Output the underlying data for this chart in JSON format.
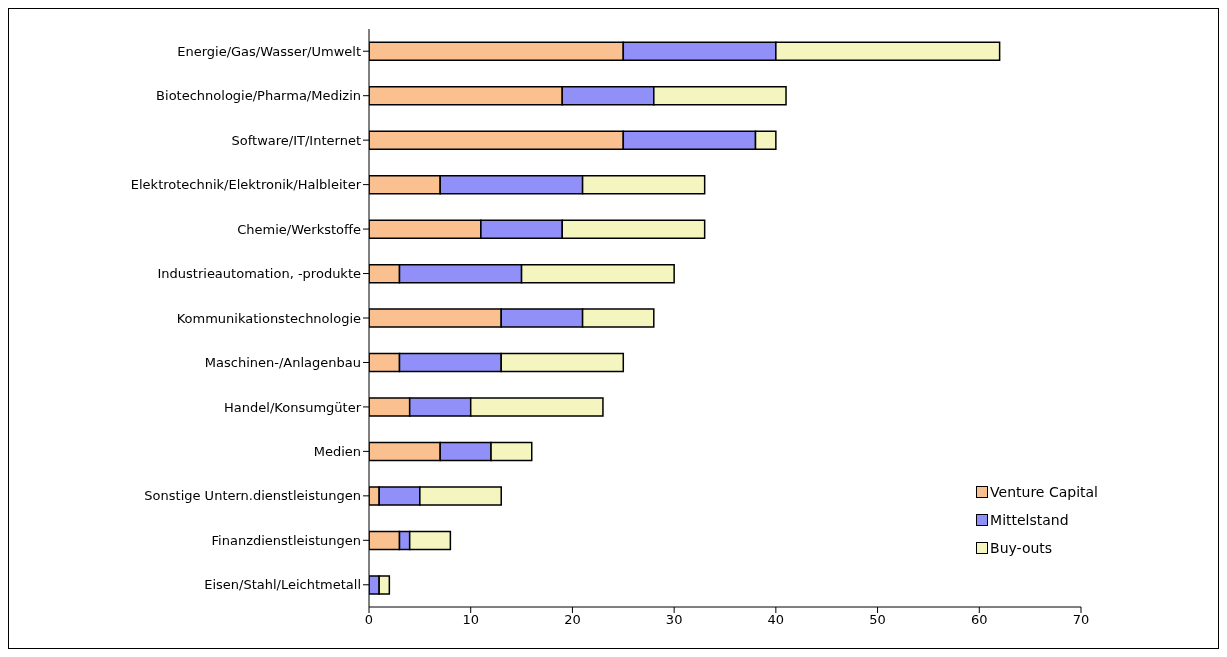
{
  "chart_data": {
    "type": "bar",
    "orientation": "horizontal",
    "stacked": true,
    "categories": [
      "Energie/Gas/Wasser/Umwelt",
      "Biotechnologie/Pharma/Medizin",
      "Software/IT/Internet",
      "Elektrotechnik/Elektronik/Halbleiter",
      "Chemie/Werkstoffe",
      "Industrieautomation, -produkte",
      "Kommunikationstechnologie",
      "Maschinen-/Anlagenbau",
      "Handel/Konsumgüter",
      "Medien",
      "Sonstige Untern.dienstleistungen",
      "Finanzdienstleistungen",
      "Eisen/Stahl/Leichtmetall"
    ],
    "series": [
      {
        "name": "Venture Capital",
        "color": "#fbc08f",
        "values": [
          25,
          19,
          25,
          7,
          11,
          3,
          13,
          3,
          4,
          7,
          1,
          3,
          0
        ]
      },
      {
        "name": "Mittelstand",
        "color": "#9090f8",
        "values": [
          15,
          9,
          13,
          14,
          8,
          12,
          8,
          10,
          6,
          5,
          4,
          1,
          1
        ]
      },
      {
        "name": "Buy-outs",
        "color": "#f5f5c0",
        "values": [
          22,
          13,
          2,
          12,
          14,
          15,
          7,
          12,
          13,
          4,
          8,
          4,
          1
        ]
      }
    ],
    "xlim": [
      0,
      70
    ],
    "xticks": [
      0,
      10,
      20,
      30,
      40,
      50,
      60,
      70
    ],
    "grid": false,
    "legend": "bottom right"
  }
}
